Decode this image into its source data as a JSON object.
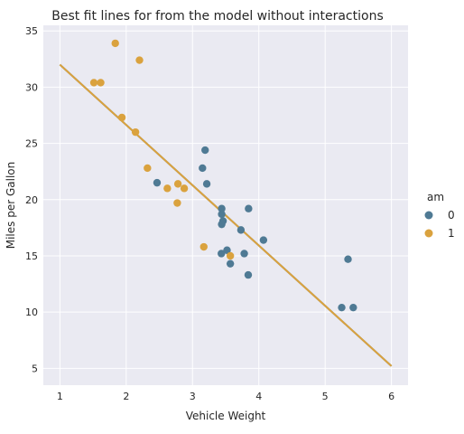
{
  "chart_data": {
    "type": "scatter",
    "title": "Best fit lines for from the model without interactions",
    "xlabel": "Vehicle Weight",
    "ylabel": "Miles per Gallon",
    "xlim": [
      0.75,
      6.25
    ],
    "ylim": [
      3.5,
      35.5
    ],
    "xticks": [
      1,
      2,
      3,
      4,
      5,
      6
    ],
    "yticks": [
      5,
      10,
      15,
      20,
      25,
      30,
      35
    ],
    "grid": true,
    "background": "#eaeaf2",
    "legend": {
      "title": "am",
      "position": "right",
      "entries": [
        {
          "label": "0",
          "color": "#4f7a94"
        },
        {
          "label": "1",
          "color": "#daa23e"
        }
      ]
    },
    "series": [
      {
        "key": "0",
        "color": "#4f7a94",
        "points": [
          [
            3.215,
            21.4
          ],
          [
            3.44,
            18.7
          ],
          [
            3.46,
            18.1
          ],
          [
            3.57,
            14.3
          ],
          [
            3.19,
            24.4
          ],
          [
            3.15,
            22.8
          ],
          [
            3.44,
            19.2
          ],
          [
            3.44,
            17.8
          ],
          [
            4.07,
            16.4
          ],
          [
            3.73,
            17.3
          ],
          [
            3.78,
            15.2
          ],
          [
            5.25,
            10.4
          ],
          [
            5.424,
            10.4
          ],
          [
            5.345,
            14.7
          ],
          [
            3.52,
            15.5
          ],
          [
            3.435,
            15.2
          ],
          [
            3.84,
            13.3
          ],
          [
            3.845,
            19.2
          ],
          [
            2.465,
            21.5
          ]
        ]
      },
      {
        "key": "1",
        "color": "#daa23e",
        "points": [
          [
            2.62,
            21.0
          ],
          [
            2.875,
            21.0
          ],
          [
            2.32,
            22.8
          ],
          [
            2.2,
            32.4
          ],
          [
            1.615,
            30.4
          ],
          [
            1.835,
            33.9
          ],
          [
            1.935,
            27.3
          ],
          [
            2.14,
            26.0
          ],
          [
            1.513,
            30.4
          ],
          [
            3.17,
            15.8
          ],
          [
            2.77,
            19.7
          ],
          [
            2.78,
            21.4
          ],
          [
            3.57,
            15.0
          ]
        ]
      }
    ],
    "fit_lines": [
      {
        "key": "0",
        "color": "#4f7a94",
        "x": [
          1,
          6
        ],
        "y": [
          32.0,
          5.2
        ]
      },
      {
        "key": "1",
        "color": "#daa23e",
        "x": [
          1,
          6
        ],
        "y": [
          32.0,
          5.2
        ]
      }
    ]
  }
}
